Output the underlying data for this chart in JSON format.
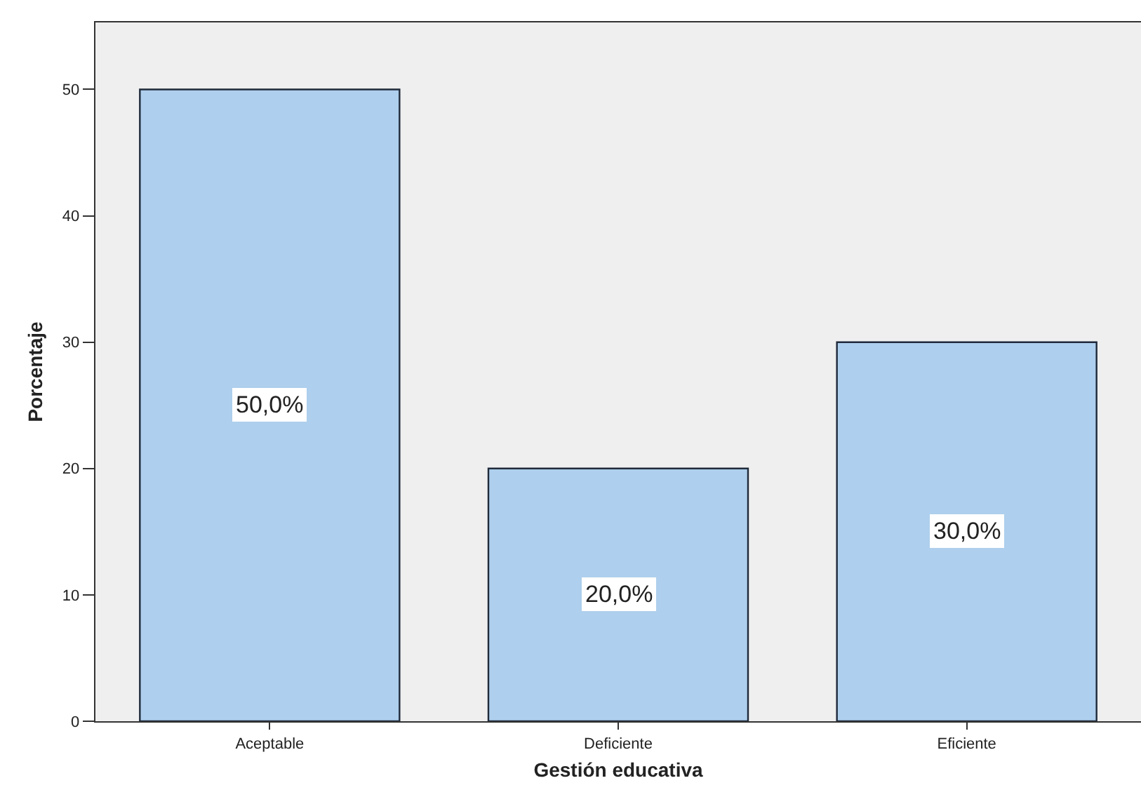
{
  "chart_data": {
    "type": "bar",
    "xlabel": "Gestión educativa",
    "ylabel": "Porcentaje",
    "categories": [
      "Aceptable",
      "Deficiente",
      "Eficiente"
    ],
    "values": [
      50,
      20,
      30
    ],
    "value_labels": [
      "50,0%",
      "20,0%",
      "30,0%"
    ],
    "color": "#aecfed",
    "ylim": [
      0,
      55.3
    ],
    "yticks": [
      0,
      10,
      20,
      30,
      40,
      50
    ]
  }
}
